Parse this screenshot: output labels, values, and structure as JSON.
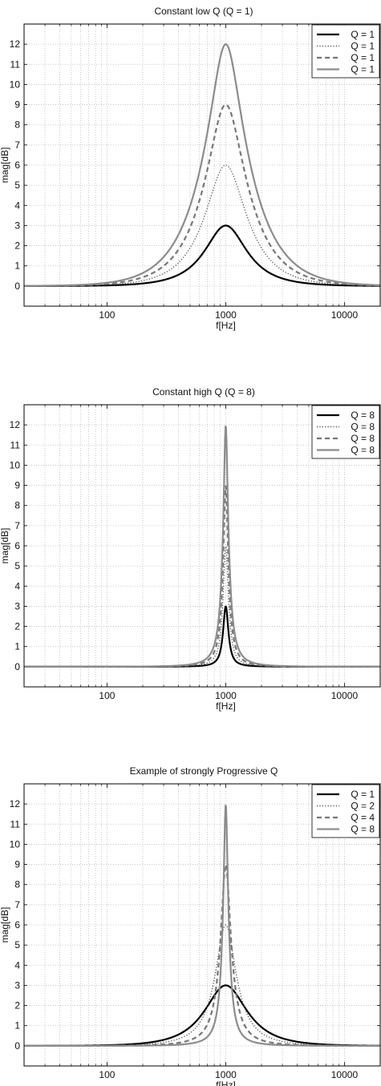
{
  "colors": {
    "black": "#000000",
    "dark_gray": "#555555",
    "mid_gray": "#777777",
    "light_gray": "#8c8c8c",
    "grid": "#bdbdbd"
  },
  "chart_data": [
    {
      "type": "line",
      "title": "Constant low Q (Q = 1)",
      "xlabel": "f[Hz]",
      "ylabel": "mag[dB]",
      "xscale": "log",
      "xlim": [
        20,
        20000
      ],
      "ylim": [
        -1,
        13
      ],
      "xticks": [
        100,
        1000,
        10000
      ],
      "xtick_labels": [
        "100",
        "1000",
        "10000"
      ],
      "yticks": [
        0,
        1,
        2,
        3,
        4,
        5,
        6,
        7,
        8,
        9,
        10,
        11,
        12
      ],
      "grid": true,
      "legend_position": "top-right",
      "center_frequency_hz": 1000,
      "series": [
        {
          "name": "Q = 1",
          "style": "solid",
          "color": "#000000",
          "gain_db": 3,
          "q": 1
        },
        {
          "name": "Q = 1",
          "style": "dotted",
          "color": "#555555",
          "gain_db": 6,
          "q": 1
        },
        {
          "name": "Q = 1",
          "style": "dashed",
          "color": "#777777",
          "gain_db": 9,
          "q": 1
        },
        {
          "name": "Q = 1",
          "style": "solid",
          "color": "#8c8c8c",
          "gain_db": 12,
          "q": 1
        }
      ]
    },
    {
      "type": "line",
      "title": "Constant high Q (Q = 8)",
      "xlabel": "f[Hz]",
      "ylabel": "mag[dB]",
      "xscale": "log",
      "xlim": [
        20,
        20000
      ],
      "ylim": [
        -1,
        13
      ],
      "xticks": [
        100,
        1000,
        10000
      ],
      "xtick_labels": [
        "100",
        "1000",
        "10000"
      ],
      "yticks": [
        0,
        1,
        2,
        3,
        4,
        5,
        6,
        7,
        8,
        9,
        10,
        11,
        12
      ],
      "grid": true,
      "legend_position": "top-right",
      "center_frequency_hz": 1000,
      "series": [
        {
          "name": "Q = 8",
          "style": "solid",
          "color": "#000000",
          "gain_db": 3,
          "q": 8
        },
        {
          "name": "Q = 8",
          "style": "dotted",
          "color": "#555555",
          "gain_db": 6,
          "q": 8
        },
        {
          "name": "Q = 8",
          "style": "dashed",
          "color": "#777777",
          "gain_db": 9,
          "q": 8
        },
        {
          "name": "Q = 8",
          "style": "solid",
          "color": "#8c8c8c",
          "gain_db": 12,
          "q": 8
        }
      ]
    },
    {
      "type": "line",
      "title": "Example of strongly Progressive Q",
      "xlabel": "f[Hz]",
      "ylabel": "mag[dB]",
      "xscale": "log",
      "xlim": [
        20,
        20000
      ],
      "ylim": [
        -1,
        13
      ],
      "xticks": [
        100,
        1000,
        10000
      ],
      "xtick_labels": [
        "100",
        "1000",
        "10000"
      ],
      "yticks": [
        0,
        1,
        2,
        3,
        4,
        5,
        6,
        7,
        8,
        9,
        10,
        11,
        12
      ],
      "grid": true,
      "legend_position": "top-right",
      "center_frequency_hz": 1000,
      "series": [
        {
          "name": "Q = 1",
          "style": "solid",
          "color": "#000000",
          "gain_db": 3,
          "q": 1
        },
        {
          "name": "Q = 2",
          "style": "dotted",
          "color": "#555555",
          "gain_db": 6,
          "q": 2
        },
        {
          "name": "Q = 4",
          "style": "dashed",
          "color": "#777777",
          "gain_db": 9,
          "q": 4
        },
        {
          "name": "Q = 8",
          "style": "solid",
          "color": "#8c8c8c",
          "gain_db": 12,
          "q": 8
        }
      ]
    }
  ]
}
